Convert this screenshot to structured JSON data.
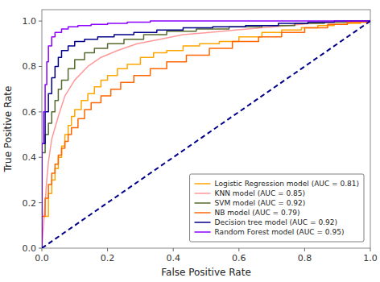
{
  "chart_data": {
    "type": "line",
    "xlabel": "False Positive Rate",
    "ylabel": "True Positive Rate",
    "xlim": [
      0.0,
      1.0
    ],
    "ylim": [
      0.0,
      1.05
    ],
    "xticks": [
      {
        "value": 0.0,
        "label": "0.0"
      },
      {
        "value": 0.2,
        "label": "0.2"
      },
      {
        "value": 0.4,
        "label": "0.4"
      },
      {
        "value": 0.6,
        "label": "0.6"
      },
      {
        "value": 0.8,
        "label": "0.8"
      },
      {
        "value": 1.0,
        "label": "1.0"
      }
    ],
    "yticks": [
      {
        "value": 0.0,
        "label": "0.0"
      },
      {
        "value": 0.2,
        "label": "0.2"
      },
      {
        "value": 0.4,
        "label": "0.4"
      },
      {
        "value": 0.6,
        "label": "0.6"
      },
      {
        "value": 0.8,
        "label": "0.8"
      },
      {
        "value": 1.0,
        "label": "1.0"
      }
    ],
    "grid": false,
    "legend": "lower right",
    "series": [
      {
        "name": "Logistic Regression model (AUC = 0.81)",
        "color": "#FFA500",
        "type": "step",
        "line_style": "solid",
        "x": [
          0.0,
          0.0,
          0.02,
          0.03,
          0.04,
          0.05,
          0.06,
          0.07,
          0.08,
          0.09,
          0.1,
          0.12,
          0.14,
          0.16,
          0.18,
          0.2,
          0.23,
          0.26,
          0.3,
          0.34,
          0.38,
          0.43,
          0.48,
          0.54,
          0.6,
          0.67,
          0.73,
          0.79,
          0.84,
          0.89,
          0.93,
          0.97,
          1.0
        ],
        "values": [
          0.0,
          0.14,
          0.24,
          0.3,
          0.35,
          0.4,
          0.45,
          0.5,
          0.54,
          0.58,
          0.61,
          0.65,
          0.68,
          0.71,
          0.74,
          0.76,
          0.79,
          0.81,
          0.84,
          0.86,
          0.87,
          0.89,
          0.9,
          0.91,
          0.93,
          0.95,
          0.96,
          0.97,
          0.98,
          0.985,
          0.99,
          1.0,
          1.0
        ]
      },
      {
        "name": "KNN model (AUC = 0.85)",
        "color": "#FF9999",
        "type": "line",
        "line_style": "solid",
        "x": [
          0.0,
          0.005,
          0.01,
          0.015,
          0.02,
          0.03,
          0.05,
          0.07,
          0.1,
          0.14,
          0.18,
          0.23,
          0.29,
          0.36,
          0.43,
          0.51,
          0.59,
          0.67,
          0.75,
          0.82,
          0.89,
          0.95,
          1.0
        ],
        "values": [
          0.0,
          0.1,
          0.2,
          0.3,
          0.38,
          0.48,
          0.58,
          0.67,
          0.74,
          0.8,
          0.84,
          0.87,
          0.9,
          0.92,
          0.94,
          0.95,
          0.96,
          0.97,
          0.98,
          0.99,
          0.995,
          1.0,
          1.0
        ]
      },
      {
        "name": "SVM model (AUC = 0.92)",
        "color": "#556B2F",
        "type": "step",
        "line_style": "solid",
        "x": [
          0.0,
          0.0,
          0.01,
          0.02,
          0.03,
          0.04,
          0.05,
          0.06,
          0.08,
          0.1,
          0.13,
          0.16,
          0.2,
          0.25,
          0.31,
          0.38,
          0.47,
          0.57,
          0.67,
          0.77,
          0.86,
          0.94,
          1.0
        ],
        "values": [
          0.0,
          0.42,
          0.5,
          0.55,
          0.6,
          0.65,
          0.7,
          0.74,
          0.79,
          0.83,
          0.86,
          0.88,
          0.9,
          0.92,
          0.94,
          0.955,
          0.965,
          0.975,
          0.98,
          0.99,
          0.995,
          1.0,
          1.0
        ]
      },
      {
        "name": "NB model (AUC = 0.79)",
        "color": "#FF6600",
        "type": "step",
        "line_style": "solid",
        "x": [
          0.0,
          0.0,
          0.01,
          0.02,
          0.03,
          0.04,
          0.05,
          0.06,
          0.07,
          0.08,
          0.09,
          0.11,
          0.13,
          0.15,
          0.18,
          0.21,
          0.24,
          0.28,
          0.33,
          0.38,
          0.44,
          0.51,
          0.58,
          0.66,
          0.73,
          0.8,
          0.87,
          0.93,
          1.0
        ],
        "values": [
          0.0,
          0.14,
          0.22,
          0.28,
          0.33,
          0.37,
          0.41,
          0.44,
          0.47,
          0.5,
          0.53,
          0.57,
          0.61,
          0.64,
          0.67,
          0.7,
          0.73,
          0.76,
          0.79,
          0.82,
          0.85,
          0.88,
          0.91,
          0.93,
          0.95,
          0.97,
          0.985,
          0.995,
          1.0
        ]
      },
      {
        "name": "Decision tree model (AUC = 0.92)",
        "color": "#00008B",
        "type": "step",
        "line_style": "solid",
        "x": [
          0.0,
          0.0,
          0.01,
          0.02,
          0.03,
          0.04,
          0.05,
          0.06,
          0.08,
          0.1,
          0.13,
          0.17,
          0.22,
          0.28,
          0.35,
          0.43,
          0.52,
          0.62,
          0.72,
          0.81,
          0.89,
          0.95,
          1.0
        ],
        "values": [
          0.0,
          0.46,
          0.6,
          0.68,
          0.75,
          0.8,
          0.84,
          0.87,
          0.89,
          0.91,
          0.92,
          0.93,
          0.94,
          0.95,
          0.96,
          0.97,
          0.975,
          0.98,
          0.99,
          0.995,
          1.0,
          1.0,
          1.0
        ]
      },
      {
        "name": "Random Forest model (AUC = 0.95)",
        "color": "#8B00FF",
        "type": "step",
        "line_style": "solid",
        "x": [
          0.0,
          0.0,
          0.005,
          0.01,
          0.015,
          0.02,
          0.03,
          0.04,
          0.06,
          0.08,
          0.11,
          0.15,
          0.2,
          0.26,
          0.33,
          0.42,
          0.52,
          0.63,
          0.74,
          0.84,
          0.93,
          1.0
        ],
        "values": [
          0.0,
          0.46,
          0.6,
          0.72,
          0.82,
          0.89,
          0.93,
          0.95,
          0.965,
          0.975,
          0.98,
          0.985,
          0.99,
          0.995,
          1.0,
          1.0,
          1.0,
          1.0,
          1.0,
          1.0,
          1.0,
          1.0
        ]
      },
      {
        "color": "#00008B",
        "type": "line",
        "line_style": "dashed",
        "x": [
          0,
          1
        ],
        "values": [
          0,
          1
        ]
      }
    ]
  }
}
